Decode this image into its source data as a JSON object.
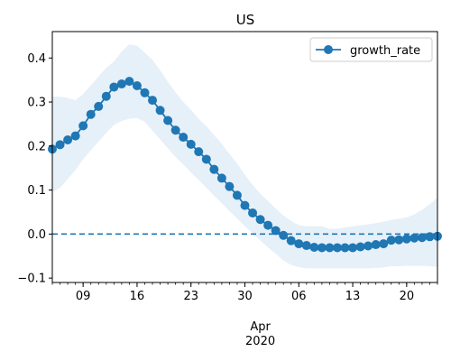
{
  "chart_data": {
    "type": "line",
    "title": "US",
    "xlabel": "",
    "ylabel": "",
    "x_start": "2020-03-05",
    "x_end": "2020-04-24",
    "xlim": [
      "2020-03-05",
      "2020-04-24"
    ],
    "ylim": [
      -0.11,
      0.46
    ],
    "y_ticks": [
      -0.1,
      0.0,
      0.1,
      0.2,
      0.3,
      0.4
    ],
    "y_tick_labels": [
      "−0.1",
      "0.0",
      "0.1",
      "0.2",
      "0.3",
      "0.4"
    ],
    "x_ticks": [
      {
        "date": "2020-03-09",
        "label": "09"
      },
      {
        "date": "2020-03-16",
        "label": "16"
      },
      {
        "date": "2020-03-23",
        "label": "23"
      },
      {
        "date": "2020-03-30",
        "label": "30"
      },
      {
        "date": "2020-04-06",
        "label": "06"
      },
      {
        "date": "2020-04-13",
        "label": "13"
      },
      {
        "date": "2020-04-20",
        "label": "20"
      }
    ],
    "x_month_label": "Apr",
    "x_year_label": "2020",
    "reference_line": {
      "y": 0.0,
      "style": "dashed",
      "color": "#1f77b4"
    },
    "legend": {
      "position": "top-right",
      "entries": [
        "growth_rate"
      ]
    },
    "grid": false,
    "series": [
      {
        "name": "growth_rate",
        "color": "#1f77b4",
        "band_color": "#d6e6f5",
        "x": [
          "2020-03-05",
          "2020-03-06",
          "2020-03-07",
          "2020-03-08",
          "2020-03-09",
          "2020-03-10",
          "2020-03-11",
          "2020-03-12",
          "2020-03-13",
          "2020-03-14",
          "2020-03-15",
          "2020-03-16",
          "2020-03-17",
          "2020-03-18",
          "2020-03-19",
          "2020-03-20",
          "2020-03-21",
          "2020-03-22",
          "2020-03-23",
          "2020-03-24",
          "2020-03-25",
          "2020-03-26",
          "2020-03-27",
          "2020-03-28",
          "2020-03-29",
          "2020-03-30",
          "2020-03-31",
          "2020-04-01",
          "2020-04-02",
          "2020-04-03",
          "2020-04-04",
          "2020-04-05",
          "2020-04-06",
          "2020-04-07",
          "2020-04-08",
          "2020-04-09",
          "2020-04-10",
          "2020-04-11",
          "2020-04-12",
          "2020-04-13",
          "2020-04-14",
          "2020-04-15",
          "2020-04-16",
          "2020-04-17",
          "2020-04-18",
          "2020-04-19",
          "2020-04-20",
          "2020-04-21",
          "2020-04-22",
          "2020-04-23",
          "2020-04-24"
        ],
        "values": [
          0.193,
          0.203,
          0.214,
          0.223,
          0.246,
          0.272,
          0.29,
          0.313,
          0.334,
          0.341,
          0.347,
          0.337,
          0.321,
          0.304,
          0.281,
          0.258,
          0.236,
          0.22,
          0.204,
          0.187,
          0.17,
          0.147,
          0.127,
          0.108,
          0.088,
          0.065,
          0.048,
          0.033,
          0.02,
          0.008,
          -0.003,
          -0.015,
          -0.022,
          -0.026,
          -0.03,
          -0.031,
          -0.031,
          -0.031,
          -0.031,
          -0.031,
          -0.029,
          -0.027,
          -0.024,
          -0.022,
          -0.014,
          -0.013,
          -0.011,
          -0.009,
          -0.008,
          -0.006,
          -0.005
        ],
        "lower": [
          0.095,
          0.105,
          0.125,
          0.145,
          0.17,
          0.19,
          0.21,
          0.23,
          0.248,
          0.257,
          0.262,
          0.264,
          0.255,
          0.235,
          0.215,
          0.195,
          0.175,
          0.158,
          0.14,
          0.123,
          0.105,
          0.087,
          0.07,
          0.052,
          0.035,
          0.018,
          0.002,
          -0.015,
          -0.03,
          -0.045,
          -0.06,
          -0.07,
          -0.075,
          -0.078,
          -0.078,
          -0.078,
          -0.078,
          -0.078,
          -0.078,
          -0.078,
          -0.078,
          -0.078,
          -0.077,
          -0.076,
          -0.073,
          -0.073,
          -0.072,
          -0.072,
          -0.072,
          -0.073,
          -0.075
        ],
        "upper": [
          0.312,
          0.312,
          0.309,
          0.304,
          0.318,
          0.338,
          0.358,
          0.378,
          0.392,
          0.415,
          0.431,
          0.428,
          0.412,
          0.396,
          0.372,
          0.346,
          0.322,
          0.3,
          0.282,
          0.262,
          0.245,
          0.225,
          0.205,
          0.182,
          0.16,
          0.135,
          0.112,
          0.092,
          0.075,
          0.058,
          0.042,
          0.03,
          0.02,
          0.018,
          0.018,
          0.018,
          0.012,
          0.012,
          0.015,
          0.018,
          0.02,
          0.022,
          0.025,
          0.028,
          0.032,
          0.035,
          0.038,
          0.045,
          0.055,
          0.068,
          0.083
        ]
      }
    ]
  }
}
